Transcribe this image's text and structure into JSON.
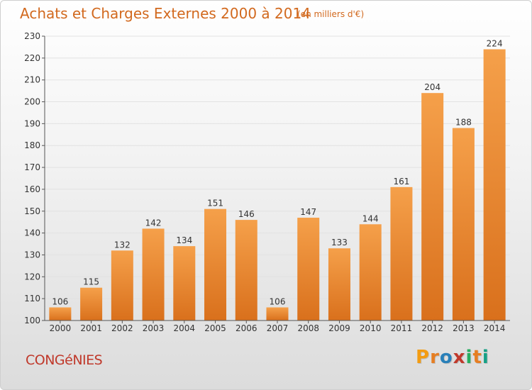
{
  "header": {
    "title": "Achats et Charges Externes 2000 à 2014",
    "subtitle": "(en milliers d'€)"
  },
  "footer": {
    "place": "CONGéNIES",
    "brand_letters": [
      "P",
      "r",
      "o",
      "x",
      "i",
      "t",
      "i"
    ]
  },
  "colors": {
    "bar_top": "#f5a04a",
    "bar_bottom": "#d9701c",
    "title": "#d2691e",
    "place": "#c0392b",
    "brand": [
      "#f39c12",
      "#e67e22",
      "#2980b9",
      "#c0392b",
      "#27ae60",
      "#e67e22",
      "#16a085"
    ]
  },
  "chart_data": {
    "type": "bar",
    "title": "Achats et Charges Externes 2000 à 2014",
    "subtitle": "(en milliers d'€)",
    "categories": [
      "2000",
      "2001",
      "2002",
      "2003",
      "2004",
      "2005",
      "2006",
      "2007",
      "2008",
      "2009",
      "2010",
      "2011",
      "2012",
      "2013",
      "2014"
    ],
    "values": [
      106,
      115,
      132,
      142,
      134,
      151,
      146,
      106,
      147,
      133,
      144,
      161,
      204,
      188,
      224
    ],
    "ylim": [
      100,
      230
    ],
    "yticks": [
      100,
      110,
      120,
      130,
      140,
      150,
      160,
      170,
      180,
      190,
      200,
      210,
      220,
      230
    ],
    "grid": true,
    "data_labels": true
  }
}
